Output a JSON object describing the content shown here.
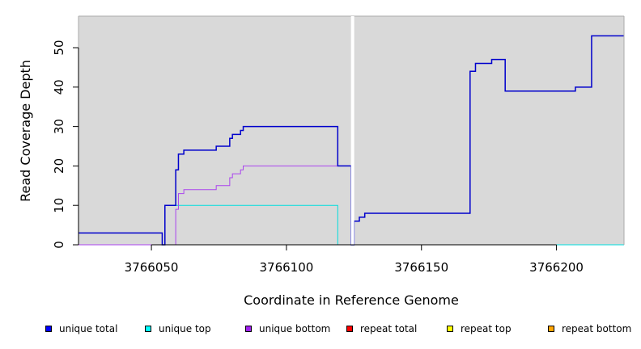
{
  "chart_data": {
    "type": "line",
    "xlabel": "Coordinate in Reference Genome",
    "ylabel": "Read Coverage Depth",
    "xlim": [
      3766023,
      3766225
    ],
    "ylim": [
      0,
      58
    ],
    "x_ticks": [
      3766050,
      3766100,
      3766150,
      3766200
    ],
    "x_tick_labels": [
      "3766050",
      "3766100",
      "3766150",
      "3766200"
    ],
    "y_ticks": [
      0,
      10,
      20,
      30,
      40,
      50
    ],
    "y_tick_labels": [
      "0",
      "10",
      "20",
      "30",
      "40",
      "50"
    ],
    "background": "#d9d9d9",
    "gap_marker_x": 3766124.5,
    "series": [
      {
        "name": "unique total",
        "color": "#0000cc",
        "steps": [
          [
            3766023,
            3
          ],
          [
            3766054,
            0
          ],
          [
            3766055,
            10
          ],
          [
            3766059,
            19
          ],
          [
            3766060,
            23
          ],
          [
            3766062,
            24
          ],
          [
            3766074,
            25
          ],
          [
            3766079,
            27
          ],
          [
            3766080,
            28
          ],
          [
            3766083,
            29
          ],
          [
            3766084,
            30
          ],
          [
            3766119,
            20
          ],
          [
            3766124,
            0
          ],
          [
            3766125,
            6
          ],
          [
            3766127,
            7
          ],
          [
            3766129,
            8
          ],
          [
            3766168,
            44
          ],
          [
            3766170,
            46
          ],
          [
            3766176,
            47
          ],
          [
            3766181,
            39
          ],
          [
            3766207,
            40
          ],
          [
            3766213,
            53
          ],
          [
            3766225,
            53
          ]
        ]
      },
      {
        "name": "unique top",
        "color": "#00dddd",
        "steps": [
          [
            3766023,
            0
          ],
          [
            3766055,
            10
          ],
          [
            3766119,
            0
          ],
          [
            3766125,
            0
          ],
          [
            3766225,
            0
          ]
        ]
      },
      {
        "name": "unique bottom",
        "color": "#aa44ee",
        "steps": [
          [
            3766023,
            0
          ],
          [
            3766059,
            9
          ],
          [
            3766060,
            13
          ],
          [
            3766062,
            14
          ],
          [
            3766074,
            15
          ],
          [
            3766079,
            17
          ],
          [
            3766080,
            18
          ],
          [
            3766083,
            19
          ],
          [
            3766084,
            20
          ],
          [
            3766124,
            0
          ]
        ]
      },
      {
        "name": "repeat total",
        "color": "#ee0000",
        "steps": [
          [
            3766023,
            0
          ],
          [
            3766054,
            0
          ]
        ]
      },
      {
        "name": "repeat top",
        "color": "#eeee00",
        "steps": []
      },
      {
        "name": "repeat bottom",
        "color": "#ff8800",
        "steps": [
          [
            3766054,
            0
          ],
          [
            3766119,
            0
          ]
        ]
      }
    ],
    "baseline_after_gap_color": "#33cc55",
    "legend": [
      {
        "label": "unique total",
        "color": "#0000ff"
      },
      {
        "label": "unique top",
        "color": "#00ffff"
      },
      {
        "label": "unique bottom",
        "color": "#a020f0"
      },
      {
        "label": "repeat total",
        "color": "#ff0000"
      },
      {
        "label": "repeat top",
        "color": "#ffff00"
      },
      {
        "label": "repeat bottom",
        "color": "#ffa500"
      }
    ],
    "legend_position": "bottom"
  }
}
